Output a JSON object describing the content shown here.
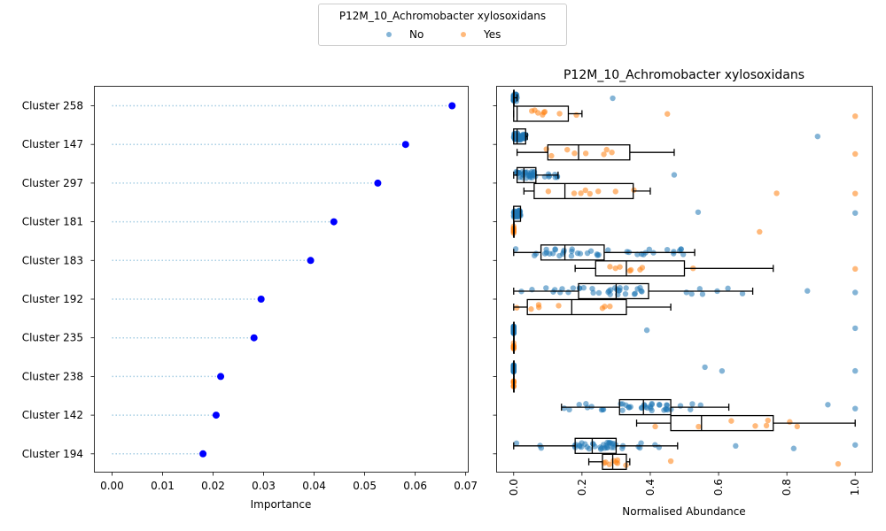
{
  "legend": {
    "title": "P12M_10_Achromobacter xylosoxidans",
    "entries": [
      {
        "label": "No",
        "color": "#1f77b4"
      },
      {
        "label": "Yes",
        "color": "#ff7f0e"
      }
    ]
  },
  "chart_data": [
    {
      "type": "scatter",
      "subtype": "lollipop",
      "xlabel": "Importance",
      "xlim": [
        -0.0035,
        0.0705
      ],
      "xticks": [
        "0.00",
        "0.01",
        "0.02",
        "0.03",
        "0.04",
        "0.05",
        "0.06",
        "0.07"
      ],
      "marker_color": "#0000ff",
      "stem_color": "#a6cee3",
      "categories": [
        "Cluster 258",
        "Cluster 147",
        "Cluster 297",
        "Cluster 181",
        "Cluster 183",
        "Cluster 192",
        "Cluster 235",
        "Cluster 238",
        "Cluster 142",
        "Cluster 194"
      ],
      "values": [
        0.0673,
        0.0581,
        0.0526,
        0.0439,
        0.0393,
        0.0295,
        0.0281,
        0.0215,
        0.0206,
        0.018
      ]
    },
    {
      "type": "box",
      "title": "P12M_10_Achromobacter xylosoxidans",
      "xlabel": "Normalised Abundance",
      "xlim": [
        -0.05,
        1.05
      ],
      "xticks": [
        "0.0",
        "0.2",
        "0.4",
        "0.6",
        "0.8",
        "1.0"
      ],
      "groups": [
        "No",
        "Yes"
      ],
      "categories": [
        "Cluster 258",
        "Cluster 147",
        "Cluster 297",
        "Cluster 181",
        "Cluster 183",
        "Cluster 192",
        "Cluster 235",
        "Cluster 238",
        "Cluster 142",
        "Cluster 194"
      ],
      "boxes": [
        {
          "cluster": "Cluster 258",
          "No": [
            0,
            0,
            0,
            0,
            0.01
          ],
          "Yes": [
            0,
            0,
            0.01,
            0.16,
            0.2
          ],
          "outliers_no": [
            0.29
          ],
          "outliers_yes": [
            0.45,
            1.0
          ]
        },
        {
          "cluster": "Cluster 147",
          "No": [
            0,
            0,
            0.01,
            0.035,
            0.04
          ],
          "Yes": [
            0.01,
            0.1,
            0.19,
            0.34,
            0.47
          ],
          "outliers_no": [
            0.89
          ],
          "outliers_yes": [
            1.0
          ]
        },
        {
          "cluster": "Cluster 297",
          "No": [
            0,
            0.01,
            0.03,
            0.065,
            0.13
          ],
          "Yes": [
            0.03,
            0.06,
            0.15,
            0.35,
            0.4
          ],
          "outliers_no": [
            0.47
          ],
          "outliers_yes": [
            0.77,
            1.0
          ]
        },
        {
          "cluster": "Cluster 181",
          "No": [
            0,
            0,
            0,
            0.02,
            0.02
          ],
          "Yes": [
            0,
            0,
            0,
            0,
            0
          ],
          "outliers_no": [
            0.54,
            1.0
          ],
          "outliers_yes": [
            0.72
          ]
        },
        {
          "cluster": "Cluster 183",
          "No": [
            0,
            0.08,
            0.15,
            0.265,
            0.53
          ],
          "Yes": [
            0.18,
            0.24,
            0.33,
            0.5,
            0.76
          ],
          "outliers_no": [],
          "outliers_yes": [
            1.0
          ]
        },
        {
          "cluster": "Cluster 192",
          "No": [
            0,
            0.19,
            0.3,
            0.395,
            0.7
          ],
          "Yes": [
            0,
            0.04,
            0.17,
            0.33,
            0.46
          ],
          "outliers_no": [
            0.86,
            1.0
          ],
          "outliers_yes": []
        },
        {
          "cluster": "Cluster 235",
          "No": [
            0,
            0,
            0,
            0,
            0
          ],
          "Yes": [
            0,
            0,
            0,
            0,
            0
          ],
          "outliers_no": [
            0.39,
            1.0
          ],
          "outliers_yes": []
        },
        {
          "cluster": "Cluster 238",
          "No": [
            0,
            0,
            0,
            0,
            0
          ],
          "Yes": [
            0,
            0,
            0,
            0,
            0
          ],
          "outliers_no": [
            0.56,
            0.61,
            1.0
          ],
          "outliers_yes": []
        },
        {
          "cluster": "Cluster 142",
          "No": [
            0.14,
            0.31,
            0.38,
            0.46,
            0.63
          ],
          "Yes": [
            0.36,
            0.46,
            0.55,
            0.76,
            1.0
          ],
          "outliers_no": [
            0.92,
            1.0
          ],
          "outliers_yes": []
        },
        {
          "cluster": "Cluster 194",
          "No": [
            0,
            0.18,
            0.23,
            0.3,
            0.48
          ],
          "Yes": [
            0.22,
            0.26,
            0.29,
            0.33,
            0.34
          ],
          "outliers_no": [
            0.65,
            0.82,
            1.0
          ],
          "outliers_yes": [
            0.46,
            0.95
          ]
        }
      ]
    }
  ]
}
